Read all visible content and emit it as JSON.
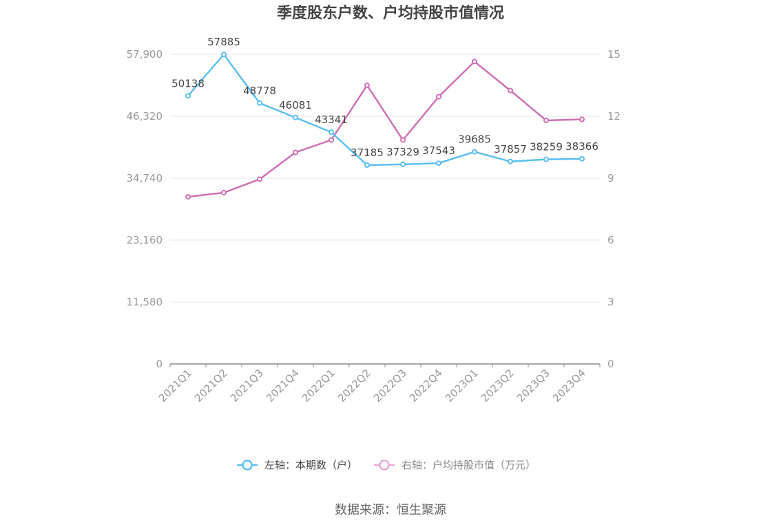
{
  "title": "季度股东户数、户均持股市值情况",
  "source": "数据来源：恒生聚源",
  "legend": {
    "left_series": "左轴：本期数（户）",
    "right_series": "右轴：户均持股市值（万元）"
  },
  "colors": {
    "left_series": "#5bbff0",
    "right_series": "#cf6fb5",
    "right_legend": "#e9a9d6",
    "grid": "#e3e6f0",
    "axis": "#888888"
  },
  "chart_data": {
    "type": "line",
    "categories": [
      "2021Q1",
      "2021Q2",
      "2021Q3",
      "2021Q4",
      "2022Q1",
      "2022Q2",
      "2022Q3",
      "2022Q4",
      "2023Q1",
      "2023Q2",
      "2023Q3",
      "2023Q4"
    ],
    "left_axis": {
      "ticks": [
        "0",
        "11,580",
        "23,160",
        "34,740",
        "46,320",
        "57,900"
      ],
      "range": [
        0,
        57900
      ]
    },
    "right_axis": {
      "ticks": [
        "0",
        "3",
        "6",
        "9",
        "12",
        "15"
      ],
      "range": [
        0,
        15
      ]
    },
    "series": [
      {
        "name": "左轴：本期数（户）",
        "axis": "left",
        "values": [
          50138,
          57885,
          48778,
          46081,
          43341,
          37185,
          37329,
          37543,
          39685,
          37857,
          38259,
          38366
        ],
        "labels": [
          "50138",
          "57885",
          "48778",
          "46081",
          "43341",
          "37185",
          "37329",
          "37543",
          "39685",
          "37857",
          "38259",
          "38366"
        ]
      },
      {
        "name": "右轴：户均持股市值（万元）",
        "axis": "right",
        "values": [
          8.1,
          8.3,
          8.95,
          10.25,
          10.85,
          13.5,
          10.85,
          12.95,
          14.65,
          13.25,
          11.8,
          11.85
        ]
      }
    ],
    "grid": true,
    "legend_position": "bottom"
  }
}
